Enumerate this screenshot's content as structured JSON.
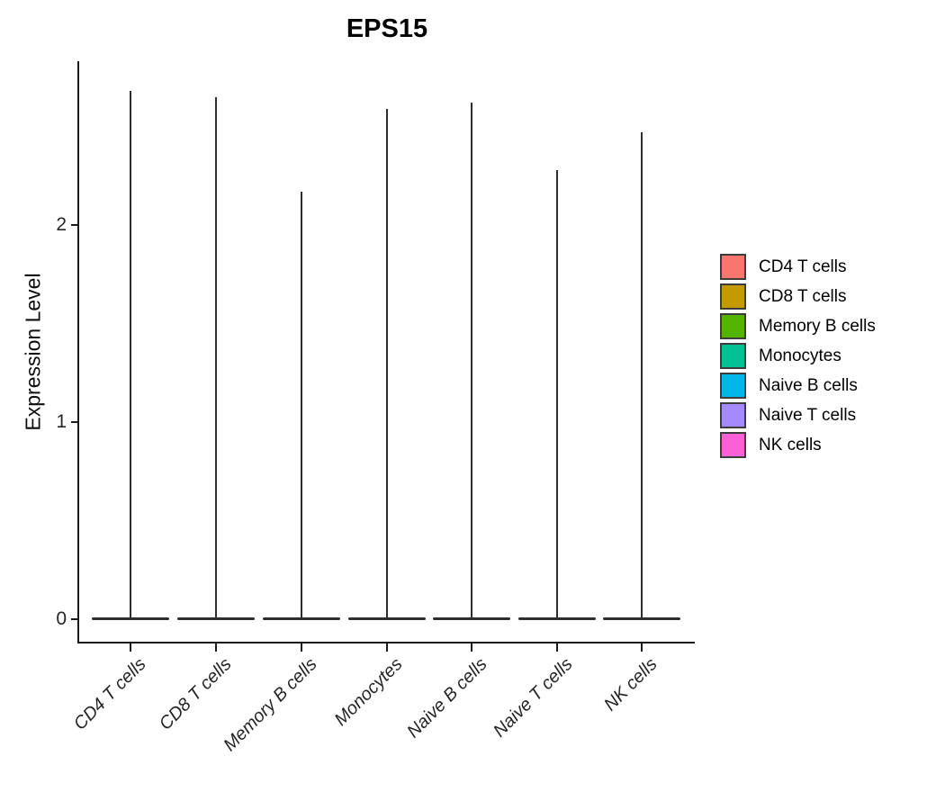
{
  "chart_data": {
    "type": "violin",
    "title": "EPS15",
    "xlabel": "",
    "ylabel": "Expression Level",
    "yticks": [
      "0",
      "1",
      "2"
    ],
    "ylim": [
      0,
      2.83
    ],
    "grid": false,
    "legend_position": "right",
    "shape_note": "each violin is a wide flat density bulge at expression 0 with an extremely thin tail rising to its maximum",
    "categories": [
      "CD4 T cells",
      "CD8 T cells",
      "Memory B cells",
      "Monocytes",
      "Naive B cells",
      "Naive T cells",
      "NK cells"
    ],
    "series": [
      {
        "name": "CD4 T cells",
        "color": "#F8766D",
        "max_expression": 2.68,
        "density_peak_at": 0
      },
      {
        "name": "CD8 T cells",
        "color": "#C49A00",
        "max_expression": 2.65,
        "density_peak_at": 0
      },
      {
        "name": "Memory B cells",
        "color": "#53B400",
        "max_expression": 2.17,
        "density_peak_at": 0
      },
      {
        "name": "Monocytes",
        "color": "#00C094",
        "max_expression": 2.59,
        "density_peak_at": 0
      },
      {
        "name": "Naive B cells",
        "color": "#00B6EB",
        "max_expression": 2.62,
        "density_peak_at": 0
      },
      {
        "name": "Naive T cells",
        "color": "#A58AFF",
        "max_expression": 2.28,
        "density_peak_at": 0
      },
      {
        "name": "NK cells",
        "color": "#FB61D7",
        "max_expression": 2.47,
        "density_peak_at": 0
      }
    ]
  }
}
